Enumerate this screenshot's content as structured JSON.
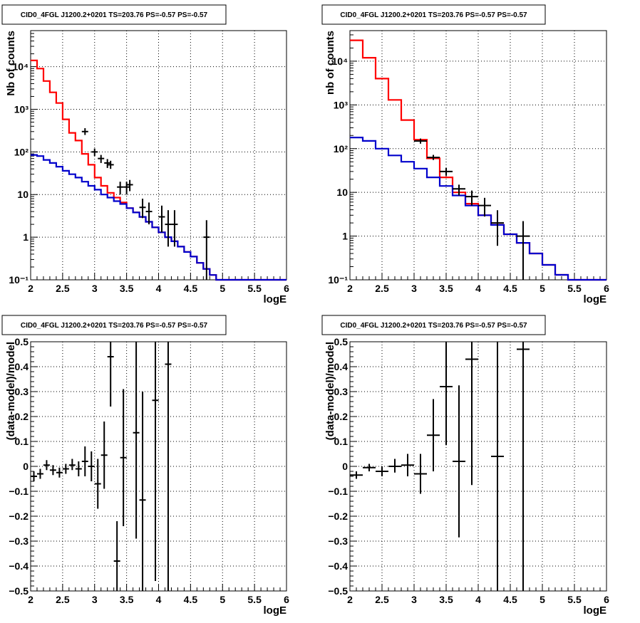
{
  "chart_data": [
    {
      "type": "step",
      "title": "CID0_4FGL J1200.2+0201 TS=203.76 PS=-0.57 PS=-0.57",
      "xlabel": "logE",
      "ylabel": "Nb of counts",
      "log_y": true,
      "xlim": [
        2,
        6
      ],
      "ylim": [
        0.1,
        70000
      ],
      "grid": true,
      "x_ticks": [
        "2",
        "2.5",
        "3",
        "3.5",
        "4",
        "4.5",
        "5",
        "5.5",
        "6"
      ],
      "y_ticks": [
        "10⁻¹",
        "1",
        "10",
        "10²",
        "10³",
        "10⁴"
      ],
      "series": [
        {
          "color": "#ff0000",
          "bin_edges": [
            2.0,
            2.1,
            2.2,
            2.3,
            2.4,
            2.5,
            2.6,
            2.7,
            2.8,
            2.9,
            3.0,
            3.1,
            3.2,
            3.3,
            3.4,
            3.5,
            3.6,
            3.7,
            3.8,
            3.9,
            4.0,
            4.1,
            4.2,
            4.3,
            4.4,
            4.5,
            4.6,
            4.7,
            4.8,
            4.9,
            5.0,
            5.1,
            5.2,
            5.3,
            5.4,
            5.5,
            5.6,
            5.7,
            5.8,
            5.9,
            6.0
          ],
          "values": [
            14000,
            9000,
            4600,
            2500,
            1400,
            580,
            280,
            185,
            90,
            50,
            25,
            16,
            11,
            8.5,
            6.5,
            4.8,
            3.8,
            3.0,
            2.3,
            1.7,
            1.3,
            1.0,
            0.8,
            0.6,
            0.45,
            0.35,
            0.25,
            0.18,
            0.13,
            0.1,
            0.1,
            0.1,
            0.1,
            0.1,
            0.1,
            0.1,
            0.1,
            0.1,
            0.1,
            0.1
          ]
        },
        {
          "color": "#0000cc",
          "bin_edges": [
            2.0,
            2.1,
            2.2,
            2.3,
            2.4,
            2.5,
            2.6,
            2.7,
            2.8,
            2.9,
            3.0,
            3.1,
            3.2,
            3.3,
            3.4,
            3.5,
            3.6,
            3.7,
            3.8,
            3.9,
            4.0,
            4.1,
            4.2,
            4.3,
            4.4,
            4.5,
            4.6,
            4.7,
            4.8,
            4.9,
            5.0,
            5.1,
            5.2,
            5.3,
            5.4,
            5.5,
            5.6,
            5.7,
            5.8,
            5.9,
            6.0
          ],
          "values": [
            85,
            80,
            65,
            55,
            45,
            36,
            30,
            25,
            20,
            16,
            13,
            10,
            8.5,
            7.0,
            6.0,
            4.8,
            3.8,
            3.0,
            2.3,
            1.7,
            1.3,
            1.0,
            0.8,
            0.6,
            0.45,
            0.35,
            0.25,
            0.18,
            0.13,
            0.1,
            0.1,
            0.1,
            0.1,
            0.1,
            0.1,
            0.1,
            0.1,
            0.1,
            0.1,
            0.1
          ]
        }
      ],
      "points": [
        {
          "x": 2.85,
          "y": 300,
          "ylo": 250,
          "yhi": 360,
          "xerr": 0.05
        },
        {
          "x": 3.0,
          "y": 100,
          "ylo": 80,
          "yhi": 120,
          "xerr": 0.05
        },
        {
          "x": 3.1,
          "y": 70,
          "ylo": 55,
          "yhi": 85,
          "xerr": 0.05
        },
        {
          "x": 3.2,
          "y": 55,
          "ylo": 42,
          "yhi": 68,
          "xerr": 0.05
        },
        {
          "x": 3.25,
          "y": 50,
          "ylo": 40,
          "yhi": 62,
          "xerr": 0.05
        },
        {
          "x": 3.4,
          "y": 15,
          "ylo": 10,
          "yhi": 20,
          "xerr": 0.05
        },
        {
          "x": 3.5,
          "y": 15,
          "ylo": 10,
          "yhi": 20,
          "xerr": 0.05
        },
        {
          "x": 3.55,
          "y": 17,
          "ylo": 12,
          "yhi": 22,
          "xerr": 0.05
        },
        {
          "x": 3.75,
          "y": 5,
          "ylo": 2.8,
          "yhi": 8,
          "xerr": 0.05
        },
        {
          "x": 3.85,
          "y": 4,
          "ylo": 2,
          "yhi": 6.5,
          "xerr": 0.05
        },
        {
          "x": 4.05,
          "y": 3,
          "ylo": 1.3,
          "yhi": 5.5,
          "xerr": 0.05
        },
        {
          "x": 4.15,
          "y": 2,
          "ylo": 0.6,
          "yhi": 4.3,
          "xerr": 0.05
        },
        {
          "x": 4.25,
          "y": 2,
          "ylo": 0.6,
          "yhi": 4.3,
          "xerr": 0.05
        },
        {
          "x": 4.75,
          "y": 1,
          "ylo": 0.1,
          "yhi": 2.5,
          "xerr": 0.05
        }
      ]
    },
    {
      "type": "step",
      "title": "CID0_4FGL J1200.2+0201 TS=203.76 PS=-0.57 PS=-0.57",
      "xlabel": "logE",
      "ylabel": "nb of counts",
      "log_y": true,
      "xlim": [
        2,
        6
      ],
      "ylim": [
        0.1,
        50000
      ],
      "grid": true,
      "x_ticks": [
        "2",
        "2.5",
        "3",
        "3.5",
        "4",
        "4.5",
        "5",
        "5.5",
        "6"
      ],
      "y_ticks": [
        "10⁻¹",
        "1",
        "10",
        "10²",
        "10³",
        "10⁴"
      ],
      "series": [
        {
          "color": "#ff0000",
          "bin_edges": [
            2.0,
            2.2,
            2.4,
            2.6,
            2.8,
            3.0,
            3.2,
            3.4,
            3.6,
            3.8,
            4.0,
            4.2,
            4.4,
            4.6,
            4.8,
            5.0,
            5.2,
            5.4,
            5.6,
            5.8,
            6.0
          ],
          "values": [
            30000,
            12000,
            4000,
            1300,
            450,
            160,
            60,
            22,
            10,
            5.5,
            3.0,
            1.8,
            1.1,
            0.7,
            0.4,
            0.22,
            0.13,
            0.1,
            0.1,
            0.1
          ]
        },
        {
          "color": "#0000cc",
          "bin_edges": [
            2.0,
            2.2,
            2.4,
            2.6,
            2.8,
            3.0,
            3.2,
            3.4,
            3.6,
            3.8,
            4.0,
            4.2,
            4.4,
            4.6,
            4.8,
            5.0,
            5.2,
            5.4,
            5.6,
            5.8,
            6.0
          ],
          "values": [
            180,
            150,
            100,
            70,
            50,
            35,
            22,
            14,
            8.5,
            5.0,
            3.0,
            1.8,
            1.1,
            0.7,
            0.4,
            0.22,
            0.13,
            0.1,
            0.1,
            0.1
          ]
        }
      ],
      "points": [
        {
          "x": 3.1,
          "y": 150,
          "ylo": 130,
          "yhi": 170,
          "xerr": 0.1
        },
        {
          "x": 3.3,
          "y": 63,
          "ylo": 55,
          "yhi": 72,
          "xerr": 0.1
        },
        {
          "x": 3.5,
          "y": 30,
          "ylo": 24,
          "yhi": 36,
          "xerr": 0.1
        },
        {
          "x": 3.7,
          "y": 12,
          "ylo": 8.5,
          "yhi": 15,
          "xerr": 0.1
        },
        {
          "x": 3.9,
          "y": 8,
          "ylo": 5,
          "yhi": 11,
          "xerr": 0.1
        },
        {
          "x": 4.1,
          "y": 5,
          "ylo": 2.8,
          "yhi": 7.5,
          "xerr": 0.1
        },
        {
          "x": 4.3,
          "y": 2,
          "ylo": 0.6,
          "yhi": 3.9,
          "xerr": 0.1
        },
        {
          "x": 4.7,
          "y": 1,
          "ylo": 0.1,
          "yhi": 2.2,
          "xerr": 0.1
        }
      ]
    },
    {
      "type": "scatter",
      "title": "CID0_4FGL J1200.2+0201 TS=203.76 PS=-0.57 PS=-0.57",
      "xlabel": "logE",
      "ylabel": "(data-model)/model",
      "log_y": false,
      "xlim": [
        2,
        6
      ],
      "ylim": [
        -0.5,
        0.5
      ],
      "grid": true,
      "x_ticks": [
        "2",
        "2.5",
        "3",
        "3.5",
        "4",
        "4.5",
        "5",
        "5.5",
        "6"
      ],
      "y_ticks": [
        "−0.5",
        "−0.4",
        "−0.3",
        "−0.2",
        "−0.1",
        "0",
        "0.1",
        "0.2",
        "0.3",
        "0.4",
        "0.5"
      ],
      "points": [
        {
          "x": 2.05,
          "y": -0.04,
          "ylo": -0.06,
          "yhi": -0.02,
          "xerr": 0.05
        },
        {
          "x": 2.15,
          "y": -0.03,
          "ylo": -0.05,
          "yhi": -0.01,
          "xerr": 0.05
        },
        {
          "x": 2.25,
          "y": 0.005,
          "ylo": -0.015,
          "yhi": 0.025,
          "xerr": 0.05
        },
        {
          "x": 2.35,
          "y": -0.015,
          "ylo": -0.035,
          "yhi": 0.005,
          "xerr": 0.05
        },
        {
          "x": 2.45,
          "y": -0.025,
          "ylo": -0.045,
          "yhi": -0.005,
          "xerr": 0.05
        },
        {
          "x": 2.55,
          "y": -0.01,
          "ylo": -0.03,
          "yhi": 0.01,
          "xerr": 0.05
        },
        {
          "x": 2.65,
          "y": 0.005,
          "ylo": -0.015,
          "yhi": 0.03,
          "xerr": 0.05
        },
        {
          "x": 2.75,
          "y": -0.01,
          "ylo": -0.04,
          "yhi": 0.02,
          "xerr": 0.05
        },
        {
          "x": 2.85,
          "y": 0.02,
          "ylo": -0.04,
          "yhi": 0.08,
          "xerr": 0.05
        },
        {
          "x": 2.95,
          "y": 0.0,
          "ylo": -0.06,
          "yhi": 0.06,
          "xerr": 0.05
        },
        {
          "x": 3.05,
          "y": -0.07,
          "ylo": -0.17,
          "yhi": 0.03,
          "xerr": 0.05
        },
        {
          "x": 3.15,
          "y": 0.045,
          "ylo": -0.09,
          "yhi": 0.18,
          "xerr": 0.05
        },
        {
          "x": 3.25,
          "y": 0.44,
          "ylo": 0.24,
          "yhi": 0.5,
          "xerr": 0.05
        },
        {
          "x": 3.35,
          "y": -0.38,
          "ylo": -0.5,
          "yhi": -0.22,
          "xerr": 0.05
        },
        {
          "x": 3.45,
          "y": 0.035,
          "ylo": -0.24,
          "yhi": 0.31,
          "xerr": 0.05
        },
        {
          "x": 3.65,
          "y": 0.135,
          "ylo": -0.29,
          "yhi": 0.5,
          "xerr": 0.05
        },
        {
          "x": 3.75,
          "y": -0.135,
          "ylo": -0.5,
          "yhi": 0.3,
          "xerr": 0.05
        },
        {
          "x": 3.95,
          "y": 0.265,
          "ylo": -0.46,
          "yhi": 0.5,
          "xerr": 0.05
        },
        {
          "x": 4.15,
          "y": 0.41,
          "ylo": -0.5,
          "yhi": 0.5,
          "xerr": 0.05
        }
      ]
    },
    {
      "type": "scatter",
      "title": "CID0_4FGL J1200.2+0201 TS=203.76 PS=-0.57 PS=-0.57",
      "xlabel": "logE",
      "ylabel": "(data-model)/model",
      "log_y": false,
      "xlim": [
        2,
        6
      ],
      "ylim": [
        -0.5,
        0.5
      ],
      "grid": true,
      "x_ticks": [
        "2",
        "2.5",
        "3",
        "3.5",
        "4",
        "4.5",
        "5",
        "5.5",
        "6"
      ],
      "y_ticks": [
        "−0.5",
        "−0.4",
        "−0.3",
        "−0.2",
        "−0.1",
        "0",
        "0.1",
        "0.2",
        "0.3",
        "0.4",
        "0.5"
      ],
      "points": [
        {
          "x": 2.1,
          "y": -0.035,
          "ylo": -0.05,
          "yhi": -0.02,
          "xerr": 0.1
        },
        {
          "x": 2.3,
          "y": -0.005,
          "ylo": -0.02,
          "yhi": 0.01,
          "xerr": 0.1
        },
        {
          "x": 2.5,
          "y": -0.02,
          "ylo": -0.04,
          "yhi": 0.0,
          "xerr": 0.1
        },
        {
          "x": 2.7,
          "y": 0.0,
          "ylo": -0.025,
          "yhi": 0.03,
          "xerr": 0.1
        },
        {
          "x": 2.9,
          "y": 0.005,
          "ylo": -0.04,
          "yhi": 0.05,
          "xerr": 0.1
        },
        {
          "x": 3.1,
          "y": -0.03,
          "ylo": -0.11,
          "yhi": 0.05,
          "xerr": 0.1
        },
        {
          "x": 3.3,
          "y": 0.125,
          "ylo": -0.02,
          "yhi": 0.27,
          "xerr": 0.1
        },
        {
          "x": 3.5,
          "y": 0.32,
          "ylo": 0.085,
          "yhi": 0.5,
          "xerr": 0.1
        },
        {
          "x": 3.7,
          "y": 0.02,
          "ylo": -0.285,
          "yhi": 0.325,
          "xerr": 0.1
        },
        {
          "x": 3.9,
          "y": 0.43,
          "ylo": -0.075,
          "yhi": 0.5,
          "xerr": 0.1
        },
        {
          "x": 4.3,
          "y": 0.04,
          "ylo": -0.5,
          "yhi": 0.5,
          "xerr": 0.1
        },
        {
          "x": 4.7,
          "y": 0.47,
          "ylo": -0.5,
          "yhi": 0.5,
          "xerr": 0.1
        }
      ]
    }
  ]
}
